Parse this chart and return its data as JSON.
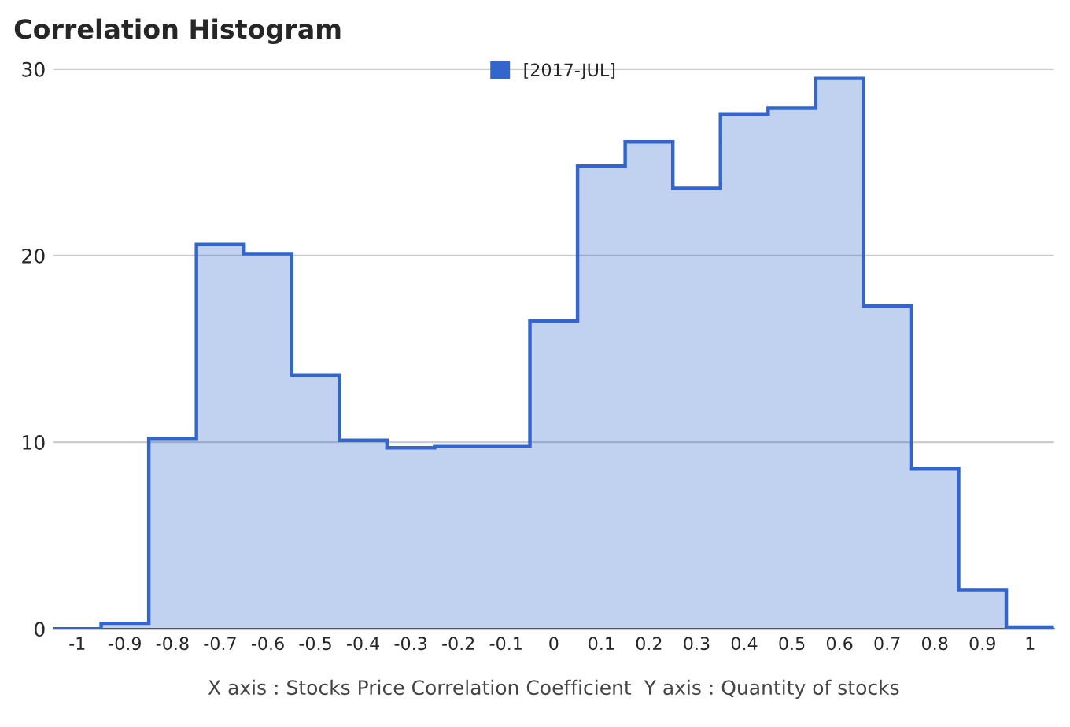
{
  "chart_data": {
    "type": "histogram",
    "title": "Correlation Histogram",
    "xlabel": "X axis : Stocks Price Correlation Coefficient  Y axis : Quantity of stocks",
    "bins": [
      -1.05,
      -0.95,
      -0.85,
      -0.75,
      -0.65,
      -0.55,
      -0.45,
      -0.35,
      -0.25,
      -0.15,
      -0.05,
      0.05,
      0.15,
      0.25,
      0.35,
      0.45,
      0.55,
      0.65,
      0.75,
      0.85,
      0.95,
      1.05
    ],
    "series": [
      {
        "name": "[2017-JUL]",
        "color": "#3366cc",
        "values": [
          0,
          0.3,
          10.2,
          20.6,
          20.1,
          13.6,
          10.1,
          9.7,
          9.8,
          9.8,
          16.5,
          24.8,
          26.1,
          23.6,
          27.6,
          27.9,
          29.5,
          17.3,
          8.6,
          2.1,
          0.1
        ]
      }
    ],
    "xlim": [
      -1.05,
      1.05
    ],
    "ylim": [
      0,
      30
    ],
    "xticks": [
      {
        "value": -1,
        "label": "-1"
      },
      -0.9,
      -0.8,
      -0.7,
      -0.6,
      -0.5,
      -0.4,
      -0.3,
      -0.2,
      -0.1,
      0,
      0.1,
      0.2,
      0.3,
      0.4,
      0.5,
      0.6,
      0.7,
      0.8,
      0.9,
      1
    ],
    "yticks": [
      0,
      10,
      20,
      30
    ],
    "grid": "y",
    "legend": "top"
  }
}
